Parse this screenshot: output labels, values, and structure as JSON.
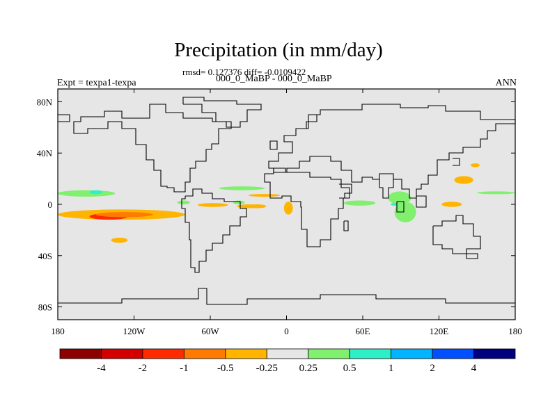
{
  "header": {
    "title": "Precipitation (in mm/day)",
    "stats": "rmsd= 0.127376 diff= -0.0109422",
    "comparison": "000_0_MaBP - 000_0_MaBP",
    "experiment": "Expt = texpa1-texpa",
    "season": "ANN"
  },
  "chart_data": {
    "type": "heatmap",
    "map_projection": "cylindrical equidistant",
    "x_ticks": [
      "180",
      "120W",
      "60W",
      "0",
      "60E",
      "120E",
      "180"
    ],
    "x_tick_values": [
      -180,
      -120,
      -60,
      0,
      60,
      120,
      180
    ],
    "y_ticks": [
      "80N",
      "40N",
      "0",
      "40S",
      "80S"
    ],
    "y_tick_values": [
      80,
      40,
      0,
      -40,
      -80
    ],
    "xlim": [
      -180,
      180
    ],
    "ylim": [
      -90,
      90
    ],
    "grid": false,
    "background_color": "#e6e6e6",
    "colorbar": {
      "position": "bottom",
      "labels": [
        "-4",
        "-2",
        "-1",
        "-0.5",
        "-0.25",
        "0.25",
        "0.5",
        "1",
        "2",
        "4"
      ],
      "colors": [
        "#8c0000",
        "#d40000",
        "#ff2a00",
        "#ff7a00",
        "#ffb400",
        "#e6e6e6",
        "#80f06e",
        "#2ef0c8",
        "#00b4ff",
        "#0050ff",
        "#00007f"
      ]
    },
    "anomaly_regions": [
      {
        "lon": [
          -180,
          -80
        ],
        "lat": [
          -12,
          -4
        ],
        "value": -0.4
      },
      {
        "lon": [
          -155,
          -125
        ],
        "lat": [
          -12,
          -7
        ],
        "value": -1.5
      },
      {
        "lon": [
          -150,
          -105
        ],
        "lat": [
          -10,
          -6
        ],
        "value": -0.7
      },
      {
        "lon": [
          -138,
          -125
        ],
        "lat": [
          -30,
          -26
        ],
        "value": -0.4
      },
      {
        "lon": [
          -180,
          -135
        ],
        "lat": [
          6,
          11
        ],
        "value": 0.3
      },
      {
        "lon": [
          -155,
          -145
        ],
        "lat": [
          8,
          11
        ],
        "value": 0.7
      },
      {
        "lon": [
          -70,
          -46
        ],
        "lat": [
          -2,
          1
        ],
        "value": -0.3
      },
      {
        "lon": [
          -53,
          -17
        ],
        "lat": [
          11,
          14
        ],
        "value": 0.3
      },
      {
        "lon": [
          -42,
          -33
        ],
        "lat": [
          0,
          3
        ],
        "value": 0.3
      },
      {
        "lon": [
          -30,
          -16
        ],
        "lat": [
          -3,
          0
        ],
        "value": -0.3
      },
      {
        "lon": [
          -2,
          5
        ],
        "lat": [
          -8,
          2
        ],
        "value": -0.3
      },
      {
        "lon": [
          -30,
          -5
        ],
        "lat": [
          6,
          8
        ],
        "value": -0.3
      },
      {
        "lon": [
          -86,
          -76
        ],
        "lat": [
          0,
          3
        ],
        "value": 0.3
      },
      {
        "lon": [
          45,
          70
        ],
        "lat": [
          -1,
          3
        ],
        "value": 0.3
      },
      {
        "lon": [
          80,
          98
        ],
        "lat": [
          0,
          10
        ],
        "value": 0.3
      },
      {
        "lon": [
          85,
          102
        ],
        "lat": [
          -14,
          2
        ],
        "value": 0.3
      },
      {
        "lon": [
          82,
          88
        ],
        "lat": [
          -1,
          1
        ],
        "value": 0.6
      },
      {
        "lon": [
          122,
          138
        ],
        "lat": [
          -2,
          2
        ],
        "value": -0.3
      },
      {
        "lon": [
          132,
          147
        ],
        "lat": [
          16,
          22
        ],
        "value": -0.3
      },
      {
        "lon": [
          145,
          152
        ],
        "lat": [
          29,
          32
        ],
        "value": -0.3
      },
      {
        "lon": [
          150,
          180
        ],
        "lat": [
          8,
          10
        ],
        "value": 0.3
      },
      {
        "lon": [
          -39,
          -20
        ],
        "lat": [
          -3,
          0
        ],
        "value": -0.3
      }
    ]
  }
}
